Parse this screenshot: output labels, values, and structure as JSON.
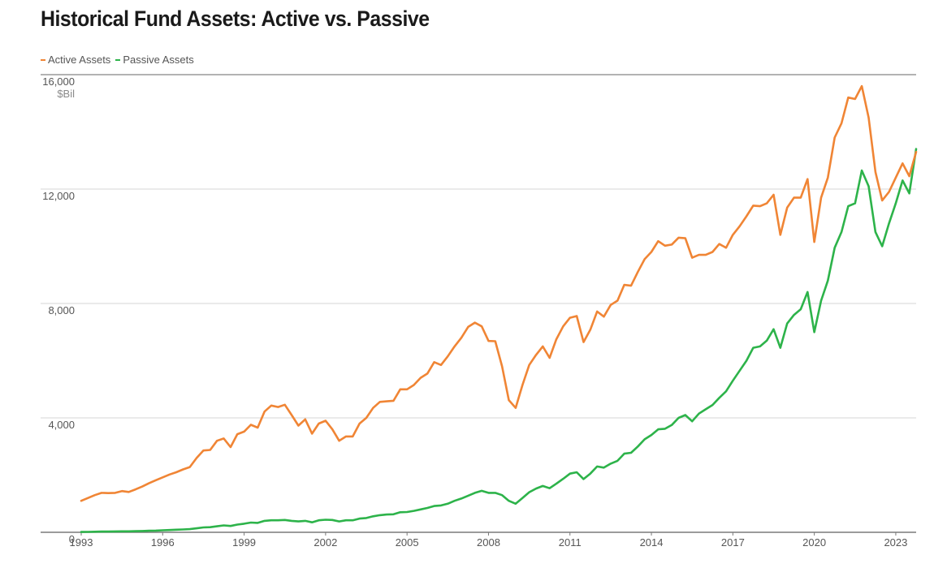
{
  "chart_data": {
    "type": "line",
    "title": "Historical Fund Assets: Active vs. Passive",
    "unit_label": "$Bil",
    "xlabel": "",
    "ylabel": "",
    "xlim": [
      1993.0,
      2023.75
    ],
    "ylim": [
      0,
      16000
    ],
    "y_ticks": [
      0,
      4000,
      8000,
      12000,
      16000
    ],
    "y_tick_labels": [
      "0",
      "4,000",
      "8,000",
      "12,000",
      "16,000"
    ],
    "x_ticks": [
      1993,
      1996,
      1999,
      2002,
      2005,
      2008,
      2011,
      2014,
      2017,
      2020,
      2023
    ],
    "grid": "horizontal",
    "legend_position": "top-left",
    "series": [
      {
        "name": "Active Assets",
        "color": "#f08535",
        "points": [
          [
            1993.0,
            1100
          ],
          [
            1993.25,
            1200
          ],
          [
            1993.5,
            1300
          ],
          [
            1993.75,
            1380
          ],
          [
            1994.0,
            1370
          ],
          [
            1994.25,
            1380
          ],
          [
            1994.5,
            1440
          ],
          [
            1994.75,
            1410
          ],
          [
            1995.0,
            1500
          ],
          [
            1995.25,
            1600
          ],
          [
            1995.5,
            1720
          ],
          [
            1995.75,
            1820
          ],
          [
            1996.0,
            1920
          ],
          [
            1996.25,
            2020
          ],
          [
            1996.5,
            2100
          ],
          [
            1996.75,
            2200
          ],
          [
            1997.0,
            2280
          ],
          [
            1997.25,
            2600
          ],
          [
            1997.5,
            2860
          ],
          [
            1997.75,
            2880
          ],
          [
            1998.0,
            3200
          ],
          [
            1998.25,
            3280
          ],
          [
            1998.5,
            2980
          ],
          [
            1998.75,
            3430
          ],
          [
            1999.0,
            3520
          ],
          [
            1999.25,
            3760
          ],
          [
            1999.5,
            3660
          ],
          [
            1999.75,
            4220
          ],
          [
            2000.0,
            4430
          ],
          [
            2000.25,
            4380
          ],
          [
            2000.5,
            4460
          ],
          [
            2000.75,
            4100
          ],
          [
            2001.0,
            3730
          ],
          [
            2001.25,
            3950
          ],
          [
            2001.5,
            3450
          ],
          [
            2001.75,
            3800
          ],
          [
            2002.0,
            3900
          ],
          [
            2002.25,
            3600
          ],
          [
            2002.5,
            3200
          ],
          [
            2002.75,
            3350
          ],
          [
            2003.0,
            3350
          ],
          [
            2003.25,
            3800
          ],
          [
            2003.5,
            4000
          ],
          [
            2003.75,
            4350
          ],
          [
            2004.0,
            4560
          ],
          [
            2004.25,
            4580
          ],
          [
            2004.5,
            4600
          ],
          [
            2004.75,
            5000
          ],
          [
            2005.0,
            5000
          ],
          [
            2005.25,
            5150
          ],
          [
            2005.5,
            5400
          ],
          [
            2005.75,
            5550
          ],
          [
            2006.0,
            5950
          ],
          [
            2006.25,
            5850
          ],
          [
            2006.5,
            6150
          ],
          [
            2006.75,
            6500
          ],
          [
            2007.0,
            6800
          ],
          [
            2007.25,
            7180
          ],
          [
            2007.5,
            7330
          ],
          [
            2007.75,
            7200
          ],
          [
            2008.0,
            6690
          ],
          [
            2008.25,
            6680
          ],
          [
            2008.5,
            5800
          ],
          [
            2008.75,
            4620
          ],
          [
            2009.0,
            4350
          ],
          [
            2009.25,
            5150
          ],
          [
            2009.5,
            5850
          ],
          [
            2009.75,
            6200
          ],
          [
            2010.0,
            6500
          ],
          [
            2010.25,
            6100
          ],
          [
            2010.5,
            6750
          ],
          [
            2010.75,
            7200
          ],
          [
            2011.0,
            7500
          ],
          [
            2011.25,
            7560
          ],
          [
            2011.5,
            6650
          ],
          [
            2011.75,
            7080
          ],
          [
            2012.0,
            7720
          ],
          [
            2012.25,
            7540
          ],
          [
            2012.5,
            7950
          ],
          [
            2012.75,
            8100
          ],
          [
            2013.0,
            8650
          ],
          [
            2013.25,
            8620
          ],
          [
            2013.5,
            9100
          ],
          [
            2013.75,
            9550
          ],
          [
            2014.0,
            9800
          ],
          [
            2014.25,
            10180
          ],
          [
            2014.5,
            10020
          ],
          [
            2014.75,
            10060
          ],
          [
            2015.0,
            10300
          ],
          [
            2015.25,
            10280
          ],
          [
            2015.5,
            9600
          ],
          [
            2015.75,
            9700
          ],
          [
            2016.0,
            9700
          ],
          [
            2016.25,
            9800
          ],
          [
            2016.5,
            10080
          ],
          [
            2016.75,
            9950
          ],
          [
            2017.0,
            10400
          ],
          [
            2017.25,
            10700
          ],
          [
            2017.5,
            11050
          ],
          [
            2017.75,
            11420
          ],
          [
            2018.0,
            11400
          ],
          [
            2018.25,
            11500
          ],
          [
            2018.5,
            11800
          ],
          [
            2018.75,
            10400
          ],
          [
            2019.0,
            11350
          ],
          [
            2019.25,
            11700
          ],
          [
            2019.5,
            11700
          ],
          [
            2019.75,
            12350
          ],
          [
            2020.0,
            10150
          ],
          [
            2020.25,
            11700
          ],
          [
            2020.5,
            12400
          ],
          [
            2020.75,
            13800
          ],
          [
            2021.0,
            14300
          ],
          [
            2021.25,
            15200
          ],
          [
            2021.5,
            15150
          ],
          [
            2021.75,
            15600
          ],
          [
            2022.0,
            14500
          ],
          [
            2022.25,
            12600
          ],
          [
            2022.5,
            11600
          ],
          [
            2022.75,
            11900
          ],
          [
            2023.0,
            12400
          ],
          [
            2023.25,
            12900
          ],
          [
            2023.5,
            12450
          ],
          [
            2023.75,
            13300
          ]
        ]
      },
      {
        "name": "Passive Assets",
        "color": "#2db34a",
        "points": [
          [
            1993.0,
            10
          ],
          [
            1993.25,
            15
          ],
          [
            1993.5,
            20
          ],
          [
            1993.75,
            25
          ],
          [
            1994.0,
            25
          ],
          [
            1994.25,
            30
          ],
          [
            1994.5,
            35
          ],
          [
            1994.75,
            35
          ],
          [
            1995.0,
            40
          ],
          [
            1995.25,
            45
          ],
          [
            1995.5,
            55
          ],
          [
            1995.75,
            60
          ],
          [
            1996.0,
            70
          ],
          [
            1996.25,
            80
          ],
          [
            1996.5,
            90
          ],
          [
            1996.75,
            100
          ],
          [
            1997.0,
            110
          ],
          [
            1997.25,
            140
          ],
          [
            1997.5,
            170
          ],
          [
            1997.75,
            180
          ],
          [
            1998.0,
            210
          ],
          [
            1998.25,
            240
          ],
          [
            1998.5,
            220
          ],
          [
            1998.75,
            270
          ],
          [
            1999.0,
            300
          ],
          [
            1999.25,
            340
          ],
          [
            1999.5,
            330
          ],
          [
            1999.75,
            400
          ],
          [
            2000.0,
            420
          ],
          [
            2000.25,
            420
          ],
          [
            2000.5,
            430
          ],
          [
            2000.75,
            400
          ],
          [
            2001.0,
            380
          ],
          [
            2001.25,
            400
          ],
          [
            2001.5,
            350
          ],
          [
            2001.75,
            420
          ],
          [
            2002.0,
            440
          ],
          [
            2002.25,
            430
          ],
          [
            2002.5,
            380
          ],
          [
            2002.75,
            420
          ],
          [
            2003.0,
            420
          ],
          [
            2003.25,
            480
          ],
          [
            2003.5,
            500
          ],
          [
            2003.75,
            560
          ],
          [
            2004.0,
            600
          ],
          [
            2004.25,
            620
          ],
          [
            2004.5,
            630
          ],
          [
            2004.75,
            700
          ],
          [
            2005.0,
            710
          ],
          [
            2005.25,
            750
          ],
          [
            2005.5,
            800
          ],
          [
            2005.75,
            850
          ],
          [
            2006.0,
            920
          ],
          [
            2006.25,
            940
          ],
          [
            2006.5,
            1000
          ],
          [
            2006.75,
            1100
          ],
          [
            2007.0,
            1180
          ],
          [
            2007.25,
            1280
          ],
          [
            2007.5,
            1380
          ],
          [
            2007.75,
            1450
          ],
          [
            2008.0,
            1380
          ],
          [
            2008.25,
            1380
          ],
          [
            2008.5,
            1300
          ],
          [
            2008.75,
            1100
          ],
          [
            2009.0,
            1000
          ],
          [
            2009.25,
            1200
          ],
          [
            2009.5,
            1400
          ],
          [
            2009.75,
            1530
          ],
          [
            2010.0,
            1620
          ],
          [
            2010.25,
            1540
          ],
          [
            2010.5,
            1700
          ],
          [
            2010.75,
            1870
          ],
          [
            2011.0,
            2050
          ],
          [
            2011.25,
            2100
          ],
          [
            2011.5,
            1860
          ],
          [
            2011.75,
            2050
          ],
          [
            2012.0,
            2300
          ],
          [
            2012.25,
            2260
          ],
          [
            2012.5,
            2400
          ],
          [
            2012.75,
            2500
          ],
          [
            2013.0,
            2750
          ],
          [
            2013.25,
            2780
          ],
          [
            2013.5,
            3000
          ],
          [
            2013.75,
            3250
          ],
          [
            2014.0,
            3400
          ],
          [
            2014.25,
            3600
          ],
          [
            2014.5,
            3620
          ],
          [
            2014.75,
            3750
          ],
          [
            2015.0,
            4000
          ],
          [
            2015.25,
            4100
          ],
          [
            2015.5,
            3880
          ],
          [
            2015.75,
            4150
          ],
          [
            2016.0,
            4300
          ],
          [
            2016.25,
            4450
          ],
          [
            2016.5,
            4700
          ],
          [
            2016.75,
            4930
          ],
          [
            2017.0,
            5300
          ],
          [
            2017.25,
            5650
          ],
          [
            2017.5,
            6000
          ],
          [
            2017.75,
            6450
          ],
          [
            2018.0,
            6500
          ],
          [
            2018.25,
            6700
          ],
          [
            2018.5,
            7100
          ],
          [
            2018.75,
            6450
          ],
          [
            2019.0,
            7300
          ],
          [
            2019.25,
            7600
          ],
          [
            2019.5,
            7800
          ],
          [
            2019.75,
            8400
          ],
          [
            2020.0,
            7000
          ],
          [
            2020.25,
            8100
          ],
          [
            2020.5,
            8800
          ],
          [
            2020.75,
            9950
          ],
          [
            2021.0,
            10500
          ],
          [
            2021.25,
            11400
          ],
          [
            2021.5,
            11500
          ],
          [
            2021.75,
            12650
          ],
          [
            2022.0,
            12100
          ],
          [
            2022.25,
            10500
          ],
          [
            2022.5,
            10000
          ],
          [
            2022.75,
            10800
          ],
          [
            2023.0,
            11500
          ],
          [
            2023.25,
            12300
          ],
          [
            2023.5,
            11850
          ],
          [
            2023.75,
            13400
          ]
        ]
      }
    ]
  }
}
